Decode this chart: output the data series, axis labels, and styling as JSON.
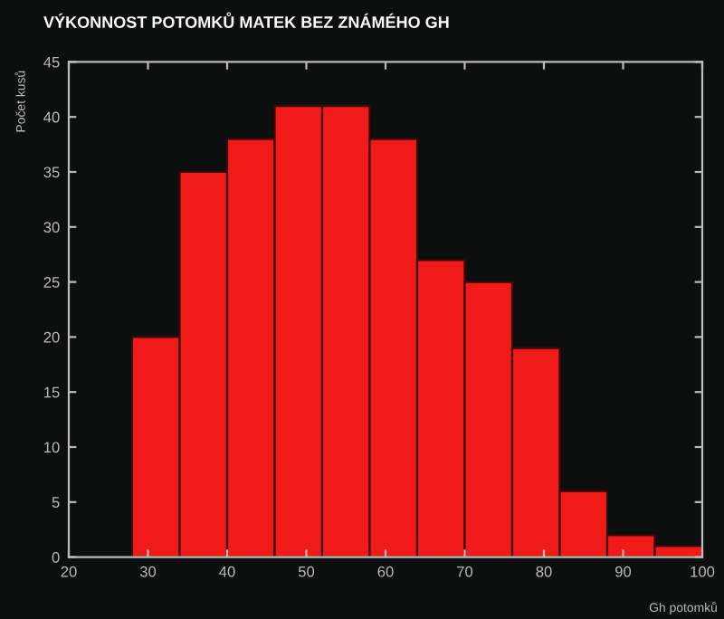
{
  "chart_data": {
    "type": "histogram",
    "title": "VÝKONNOST POTOMKŮ MATEK BEZ ZNÁMÉHO GH",
    "xlabel": "Gh potomků",
    "ylabel": "Počet kusů",
    "bins": [
      28,
      34,
      40,
      46,
      52,
      58,
      64,
      70,
      76,
      82,
      88,
      94,
      100
    ],
    "values": [
      20,
      35,
      38,
      41,
      41,
      38,
      27,
      25,
      19,
      6,
      2,
      1
    ],
    "color": "#f01a18",
    "xlim": [
      20,
      100
    ],
    "xticks": [
      20,
      30,
      40,
      50,
      60,
      70,
      80,
      90,
      100
    ],
    "ylim": [
      0,
      45
    ],
    "yticks": [
      0,
      5,
      10,
      15,
      20,
      25,
      30,
      35,
      40,
      45
    ],
    "grid": false,
    "legend": false
  }
}
